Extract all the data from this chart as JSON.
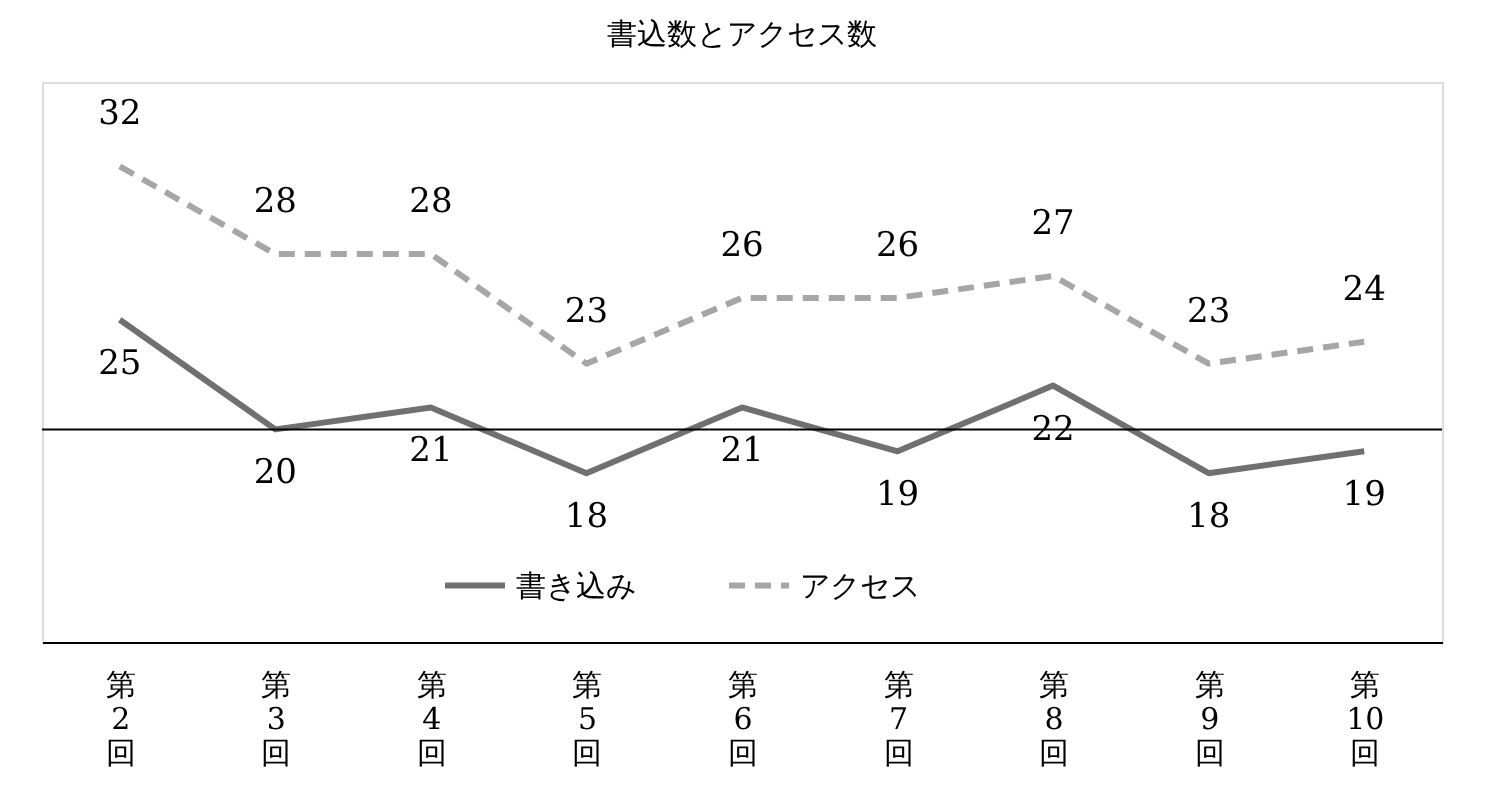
{
  "chart_data": {
    "type": "line",
    "title": "書込数とアクセス数",
    "categories": [
      "第2回",
      "第3回",
      "第4回",
      "第5回",
      "第6回",
      "第7回",
      "第8回",
      "第9回",
      "第10回"
    ],
    "series": [
      {
        "name": "書き込み",
        "color": "#707070",
        "line_style": "solid",
        "values": [
          25,
          20,
          21,
          18,
          21,
          19,
          22,
          18,
          19
        ]
      },
      {
        "name": "アクセス",
        "color": "#a6a6a6",
        "line_style": "dashed",
        "values": [
          32,
          28,
          28,
          23,
          26,
          26,
          27,
          23,
          24
        ]
      }
    ],
    "data_labels": true,
    "ref_lines": [
      {
        "axis": "y",
        "value": 20,
        "color": "#000000"
      }
    ],
    "legend": "bottom",
    "grid": false,
    "marker": "none"
  }
}
